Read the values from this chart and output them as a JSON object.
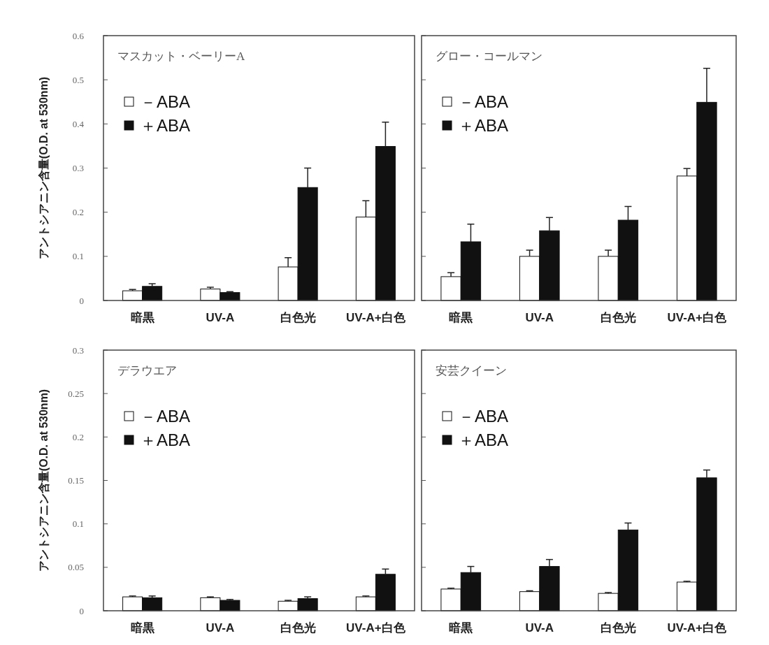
{
  "chart_data": [
    {
      "type": "bar",
      "title": "マスカット・ベーリーA",
      "ylabel": "アントシアニン含量(O.D. at 530nm)",
      "categories": [
        "暗黒",
        "UV-A",
        "白色光",
        "UV-A+白色"
      ],
      "ylim": [
        0,
        0.6
      ],
      "yticks": [
        0,
        0.1,
        0.2,
        0.3,
        0.4,
        0.5,
        0.6
      ],
      "legend": "top left",
      "series": [
        {
          "name": "－ABA",
          "color": "#ffffff",
          "values": [
            0.022,
            0.026,
            0.076,
            0.189
          ],
          "errors": [
            [
              0.022,
              0.025
            ],
            [
              0.026,
              0.03
            ],
            [
              0.076,
              0.097
            ],
            [
              0.189,
              0.226
            ]
          ]
        },
        {
          "name": "＋ABA",
          "color": "#111111",
          "values": [
            0.032,
            0.018,
            0.256,
            0.349
          ],
          "errors": [
            [
              0.032,
              0.038
            ],
            [
              0.018,
              0.02
            ],
            [
              0.256,
              0.3
            ],
            [
              0.349,
              0.404
            ]
          ]
        }
      ]
    },
    {
      "type": "bar",
      "title": "グロー・コールマン",
      "categories": [
        "暗黒",
        "UV-A",
        "白色光",
        "UV-A+白色"
      ],
      "ylim": [
        0,
        0.6
      ],
      "yticks": [
        0,
        0.1,
        0.2,
        0.3,
        0.4,
        0.5,
        0.6
      ],
      "tick_labels": "x",
      "legend": "top left",
      "series": [
        {
          "name": "－ABA",
          "color": "#ffffff",
          "values": [
            0.054,
            0.1,
            0.1,
            0.282
          ],
          "errors": [
            [
              0.054,
              0.063
            ],
            [
              0.1,
              0.114
            ],
            [
              0.1,
              0.114
            ],
            [
              0.282,
              0.299
            ]
          ]
        },
        {
          "name": "＋ABA",
          "color": "#111111",
          "values": [
            0.133,
            0.158,
            0.182,
            0.449
          ],
          "errors": [
            [
              0.133,
              0.173
            ],
            [
              0.158,
              0.188
            ],
            [
              0.182,
              0.213
            ],
            [
              0.449,
              0.526
            ]
          ]
        }
      ]
    },
    {
      "type": "bar",
      "title": "デラウエア",
      "ylabel": "アントシアニン含量(O.D. at 530nm)",
      "categories": [
        "暗黒",
        "UV-A",
        "白色光",
        "UV-A+白色"
      ],
      "ylim": [
        0,
        0.3
      ],
      "yticks": [
        0,
        0.05,
        0.1,
        0.15,
        0.2,
        0.25,
        0.3
      ],
      "legend": "top left",
      "series": [
        {
          "name": "－ABA",
          "color": "#ffffff",
          "values": [
            0.016,
            0.015,
            0.011,
            0.016
          ],
          "errors": [
            [
              0.016,
              0.017
            ],
            [
              0.015,
              0.016
            ],
            [
              0.011,
              0.012
            ],
            [
              0.016,
              0.017
            ]
          ]
        },
        {
          "name": "＋ABA",
          "color": "#111111",
          "values": [
            0.015,
            0.012,
            0.014,
            0.042
          ],
          "errors": [
            [
              0.015,
              0.017
            ],
            [
              0.012,
              0.013
            ],
            [
              0.014,
              0.016
            ],
            [
              0.042,
              0.048
            ]
          ]
        }
      ]
    },
    {
      "type": "bar",
      "title": "安芸クイーン",
      "categories": [
        "暗黒",
        "UV-A",
        "白色光",
        "UV-A+白色"
      ],
      "ylim": [
        0,
        0.3
      ],
      "yticks": [
        0,
        0.05,
        0.1,
        0.15,
        0.2,
        0.25,
        0.3
      ],
      "tick_labels": "x",
      "legend": "top left",
      "series": [
        {
          "name": "－ABA",
          "color": "#ffffff",
          "values": [
            0.025,
            0.022,
            0.02,
            0.033
          ],
          "errors": [
            [
              0.025,
              0.026
            ],
            [
              0.022,
              0.023
            ],
            [
              0.02,
              0.021
            ],
            [
              0.033,
              0.034
            ]
          ]
        },
        {
          "name": "＋ABA",
          "color": "#111111",
          "values": [
            0.044,
            0.051,
            0.093,
            0.153
          ],
          "errors": [
            [
              0.044,
              0.051
            ],
            [
              0.051,
              0.059
            ],
            [
              0.093,
              0.101
            ],
            [
              0.153,
              0.162
            ]
          ]
        }
      ]
    }
  ]
}
